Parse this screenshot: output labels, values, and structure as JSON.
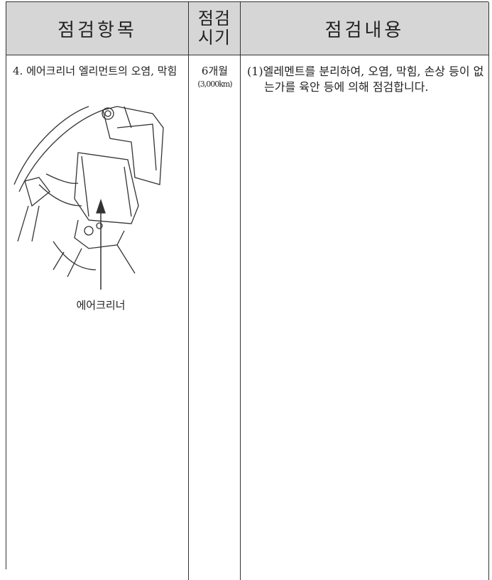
{
  "header": {
    "item": "점검항목",
    "period": [
      "점검",
      "시기"
    ],
    "content": "점검내용"
  },
  "rows": [
    {
      "item": "4. 에어크리너 엘리먼트의 오염, 막힘",
      "period": "6개월",
      "distance": "(3,000km)",
      "content": "(1)엘레멘트를 분리하여, 오염, 막힘, 손상 등이 없는가를 육안 등에 의해 점검합니다.",
      "figure_label": "에어크리너"
    }
  ]
}
